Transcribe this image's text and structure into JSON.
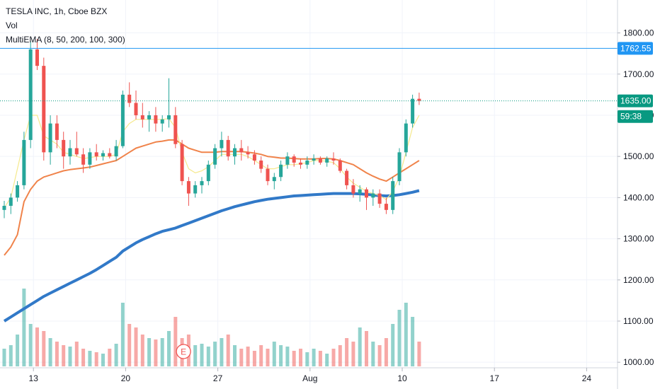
{
  "legend": {
    "symbol": "TESLA INC, 1h, Cboe BZX",
    "vol": "Vol",
    "indicator": "MultiEMA (8, 50, 200, 100, 300)"
  },
  "colors": {
    "up": "#26a69a",
    "down": "#ef5350",
    "ema8": "#f5e98c",
    "ema50": "#f0834a",
    "ema200": "#3179c8",
    "price_line_blue": "#2196f3",
    "price_line_teal": "#089981"
  },
  "chart_data": {
    "type": "candlestick",
    "y_axis": {
      "min": 990,
      "max": 1880,
      "ticks": [
        "1800.00",
        "1700.00",
        "1600.00",
        "1500.00",
        "1400.00",
        "1300.00",
        "1200.00",
        "1100.00",
        "1000.00"
      ]
    },
    "x_axis": {
      "ticks": [
        "13",
        "20",
        "27",
        "Aug",
        "10",
        "17",
        "24"
      ],
      "tick_bar_index": [
        4,
        18,
        32,
        46,
        60,
        74,
        88
      ]
    },
    "price_labels": [
      {
        "text": "1762.55",
        "value": 1762.55,
        "style": "blue"
      },
      {
        "text": "1635.00",
        "value": 1635.0,
        "style": "teal"
      },
      {
        "text": "59:38",
        "value": 1597.0,
        "style": "teal"
      }
    ],
    "event_marker": {
      "text": "E",
      "bar_index": 27
    },
    "bars": [
      [
        1370,
        1392,
        1350,
        1380
      ],
      [
        1380,
        1410,
        1360,
        1400
      ],
      [
        1400,
        1440,
        1390,
        1430
      ],
      [
        1430,
        1560,
        1420,
        1540
      ],
      [
        1540,
        1780,
        1520,
        1760
      ],
      [
        1760,
        1785,
        1710,
        1720
      ],
      [
        1720,
        1740,
        1490,
        1510
      ],
      [
        1510,
        1600,
        1480,
        1580
      ],
      [
        1580,
        1600,
        1520,
        1540
      ],
      [
        1540,
        1560,
        1470,
        1500
      ],
      [
        1500,
        1540,
        1480,
        1520
      ],
      [
        1520,
        1560,
        1500,
        1505
      ],
      [
        1505,
        1520,
        1460,
        1480
      ],
      [
        1480,
        1520,
        1470,
        1510
      ],
      [
        1510,
        1530,
        1490,
        1500
      ],
      [
        1500,
        1515,
        1490,
        1508
      ],
      [
        1508,
        1520,
        1495,
        1500
      ],
      [
        1500,
        1540,
        1490,
        1525
      ],
      [
        1525,
        1660,
        1520,
        1650
      ],
      [
        1650,
        1680,
        1620,
        1630
      ],
      [
        1630,
        1660,
        1590,
        1600
      ],
      [
        1600,
        1630,
        1570,
        1590
      ],
      [
        1590,
        1610,
        1560,
        1600
      ],
      [
        1600,
        1620,
        1560,
        1580
      ],
      [
        1580,
        1600,
        1560,
        1590
      ],
      [
        1590,
        1690,
        1570,
        1600
      ],
      [
        1600,
        1620,
        1520,
        1530
      ],
      [
        1530,
        1540,
        1430,
        1440
      ],
      [
        1440,
        1450,
        1380,
        1410
      ],
      [
        1410,
        1440,
        1400,
        1430
      ],
      [
        1430,
        1450,
        1410,
        1440
      ],
      [
        1440,
        1490,
        1430,
        1480
      ],
      [
        1480,
        1530,
        1470,
        1520
      ],
      [
        1520,
        1560,
        1500,
        1540
      ],
      [
        1540,
        1550,
        1490,
        1500
      ],
      [
        1500,
        1530,
        1480,
        1520
      ],
      [
        1520,
        1540,
        1490,
        1510
      ],
      [
        1510,
        1525,
        1495,
        1505
      ],
      [
        1505,
        1515,
        1480,
        1490
      ],
      [
        1490,
        1500,
        1460,
        1470
      ],
      [
        1470,
        1480,
        1430,
        1440
      ],
      [
        1440,
        1460,
        1420,
        1450
      ],
      [
        1450,
        1490,
        1440,
        1480
      ],
      [
        1480,
        1510,
        1470,
        1500
      ],
      [
        1500,
        1505,
        1475,
        1485
      ],
      [
        1485,
        1495,
        1470,
        1480
      ],
      [
        1480,
        1500,
        1470,
        1490
      ],
      [
        1490,
        1505,
        1480,
        1495
      ],
      [
        1495,
        1500,
        1480,
        1485
      ],
      [
        1485,
        1500,
        1475,
        1495
      ],
      [
        1495,
        1510,
        1480,
        1490
      ],
      [
        1490,
        1495,
        1460,
        1465
      ],
      [
        1465,
        1470,
        1420,
        1430
      ],
      [
        1430,
        1445,
        1400,
        1410
      ],
      [
        1410,
        1430,
        1390,
        1420
      ],
      [
        1420,
        1425,
        1370,
        1400
      ],
      [
        1400,
        1420,
        1380,
        1410
      ],
      [
        1410,
        1420,
        1375,
        1385
      ],
      [
        1385,
        1400,
        1360,
        1370
      ],
      [
        1370,
        1450,
        1360,
        1440
      ],
      [
        1440,
        1520,
        1430,
        1510
      ],
      [
        1510,
        1590,
        1500,
        1580
      ],
      [
        1580,
        1650,
        1570,
        1640
      ],
      [
        1640,
        1655,
        1625,
        1635
      ]
    ],
    "volumes": [
      25,
      30,
      45,
      110,
      60,
      55,
      50,
      40,
      35,
      30,
      28,
      35,
      25,
      22,
      20,
      18,
      25,
      32,
      90,
      60,
      55,
      45,
      40,
      38,
      40,
      50,
      70,
      40,
      45,
      30,
      32,
      28,
      35,
      40,
      45,
      30,
      25,
      28,
      22,
      30,
      25,
      35,
      30,
      28,
      22,
      25,
      20,
      25,
      22,
      18,
      25,
      30,
      40,
      35,
      55,
      50,
      35,
      30,
      40,
      60,
      80,
      90,
      70,
      35
    ],
    "ema8": [
      1375,
      1400,
      1470,
      1540,
      1600,
      1600,
      1550,
      1540,
      1530,
      1510,
      1505,
      1500,
      1495,
      1497,
      1500,
      1500,
      1500,
      1505,
      1560,
      1580,
      1590,
      1590,
      1590,
      1590,
      1590,
      1592,
      1570,
      1510,
      1470,
      1460,
      1465,
      1475,
      1490,
      1505,
      1505,
      1505,
      1505,
      1500,
      1490,
      1480,
      1470,
      1470,
      1475,
      1480,
      1480,
      1482,
      1485,
      1490,
      1490,
      1488,
      1485,
      1470,
      1450,
      1435,
      1425,
      1415,
      1410,
      1405,
      1395,
      1415,
      1450,
      1510,
      1570,
      1600
    ],
    "ema50": [
      1260,
      1280,
      1310,
      1390,
      1420,
      1440,
      1450,
      1455,
      1460,
      1465,
      1468,
      1470,
      1472,
      1474,
      1478,
      1482,
      1486,
      1490,
      1500,
      1510,
      1520,
      1525,
      1530,
      1535,
      1537,
      1540,
      1540,
      1530,
      1520,
      1515,
      1510,
      1510,
      1510,
      1512,
      1512,
      1512,
      1512,
      1510,
      1508,
      1505,
      1500,
      1498,
      1496,
      1496,
      1495,
      1494,
      1494,
      1494,
      1495,
      1495,
      1494,
      1490,
      1485,
      1480,
      1470,
      1460,
      1452,
      1445,
      1440,
      1450,
      1460,
      1470,
      1480,
      1490
    ],
    "ema200": [
      1100,
      1110,
      1120,
      1130,
      1140,
      1150,
      1160,
      1168,
      1176,
      1184,
      1192,
      1200,
      1208,
      1216,
      1225,
      1235,
      1245,
      1255,
      1270,
      1280,
      1290,
      1298,
      1305,
      1312,
      1318,
      1322,
      1326,
      1332,
      1338,
      1344,
      1350,
      1356,
      1362,
      1368,
      1373,
      1378,
      1382,
      1386,
      1390,
      1393,
      1396,
      1398,
      1400,
      1402,
      1404,
      1405,
      1406,
      1407,
      1408,
      1409,
      1410,
      1410,
      1410,
      1410,
      1409,
      1408,
      1406,
      1405,
      1404,
      1405,
      1407,
      1410,
      1413,
      1417
    ]
  }
}
